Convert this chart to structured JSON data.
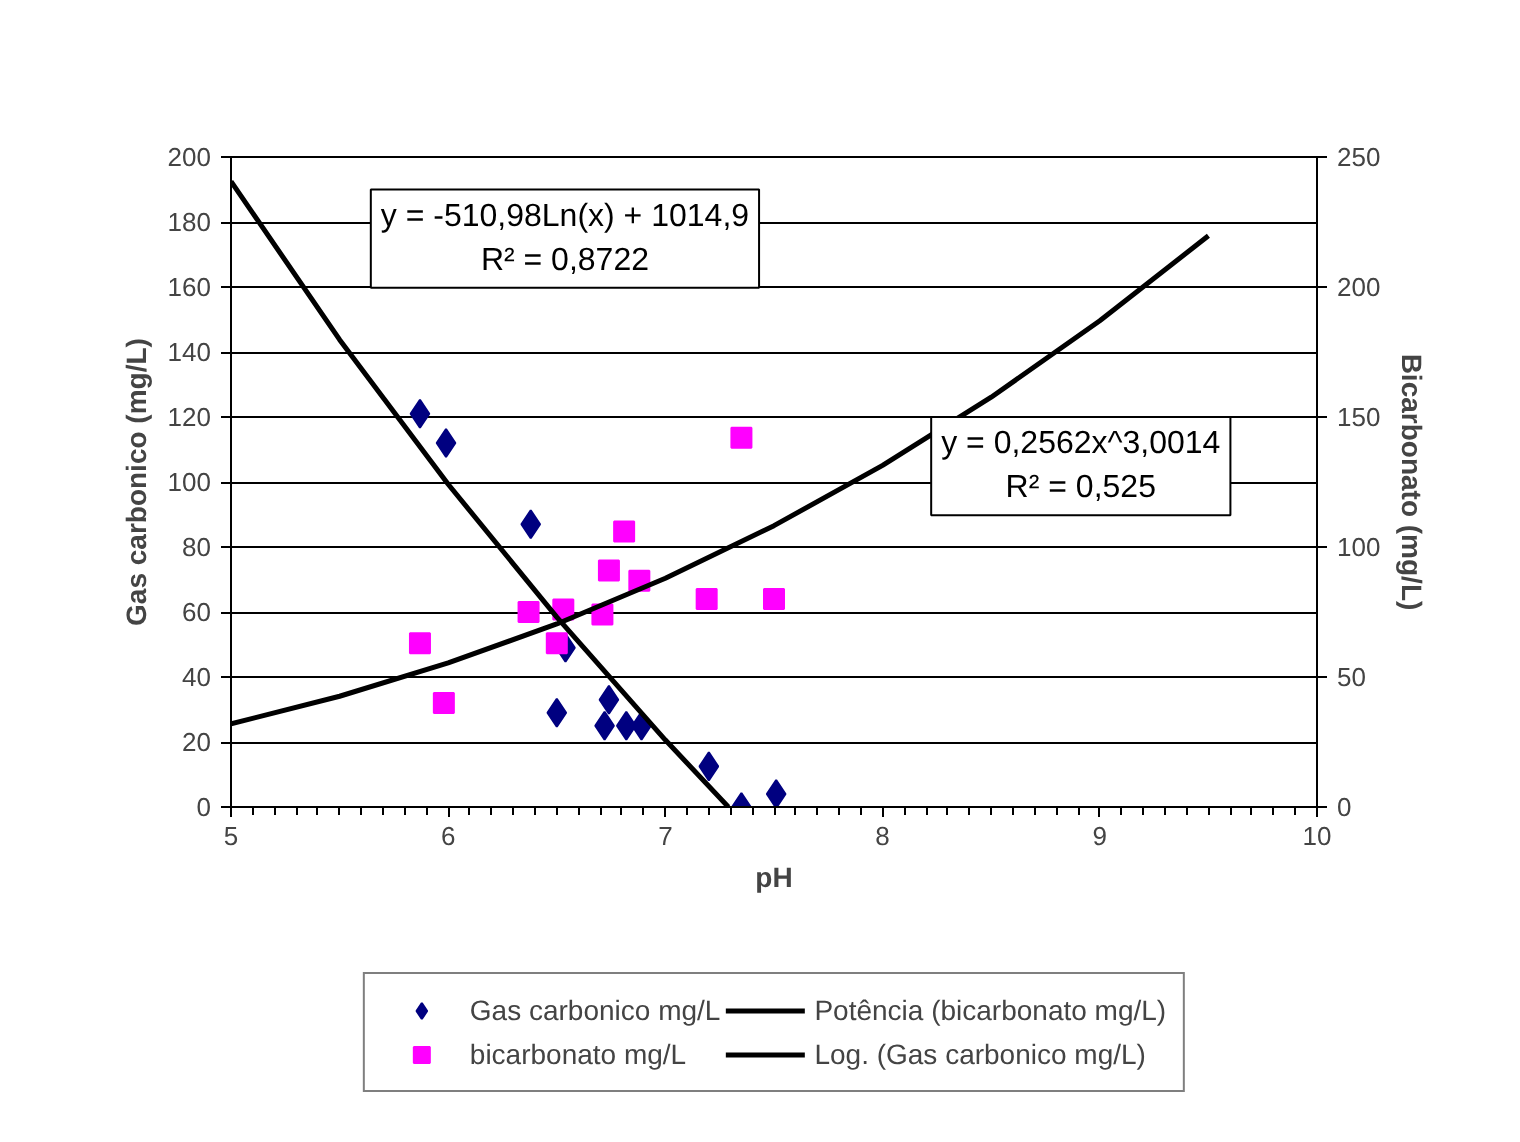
{
  "chart_data": {
    "type": "scatter",
    "xlabel": "pH",
    "ylabel": "Gas carbonico (mg/L)",
    "y2label": "Bicarbonato (mg/L)",
    "xlim": [
      5,
      10
    ],
    "xticks": [
      5,
      6,
      7,
      8,
      9,
      10
    ],
    "ylim": [
      0,
      200
    ],
    "yticks": [
      0,
      20,
      40,
      60,
      80,
      100,
      120,
      140,
      160,
      180,
      200
    ],
    "y2lim": [
      0,
      250
    ],
    "y2ticks": [
      0,
      50,
      100,
      150,
      200,
      250
    ],
    "grid": "y",
    "legend": "bottom",
    "series": [
      {
        "name": "Gas carbonico mg/L",
        "type": "scatter",
        "marker": "diamond",
        "color": "#000080",
        "x": [
          5.87,
          5.99,
          6.38,
          6.54,
          6.5,
          6.74,
          6.72,
          6.82,
          6.89,
          7.2,
          7.35,
          7.51
        ],
        "values": [
          121,
          112,
          87,
          49,
          29,
          33,
          25,
          25,
          25,
          12.5,
          0,
          4
        ]
      },
      {
        "name": "bicarbonato mg/L",
        "marker": "square",
        "axis": "y2",
        "color": "#ff00ff",
        "x": [
          5.87,
          5.98,
          6.37,
          6.53,
          6.5,
          6.71,
          6.74,
          6.81,
          6.88,
          7.19,
          7.35,
          7.5
        ],
        "values": [
          63,
          40,
          75,
          76,
          63,
          74,
          91,
          106,
          87,
          80,
          142,
          80
        ]
      },
      {
        "name": "Potência (bicarbonato mg/L)",
        "type": "line",
        "axis": "y2",
        "color": "#000000",
        "x": [
          5,
          5.5,
          6,
          6.5,
          7,
          7.5,
          8,
          8.5,
          9,
          9.5
        ],
        "values": [
          32.0,
          42.6,
          55.4,
          70.4,
          88.0,
          108.2,
          131.4,
          157.6,
          187.0,
          219.7
        ]
      },
      {
        "name": "Log. (Gas carbonico mg/L)",
        "type": "line",
        "color": "#000000",
        "x": [
          5,
          5.5,
          6,
          6.5,
          7,
          7.29
        ],
        "values": [
          192.5,
          143.8,
          99.3,
          58.4,
          20.6,
          0
        ]
      }
    ],
    "annotations": [
      "y = -510,98Ln(x) + 1014,9\nR² = 0,8722",
      "y = 0,2562x^3,0014\nR² = 0,525"
    ]
  }
}
